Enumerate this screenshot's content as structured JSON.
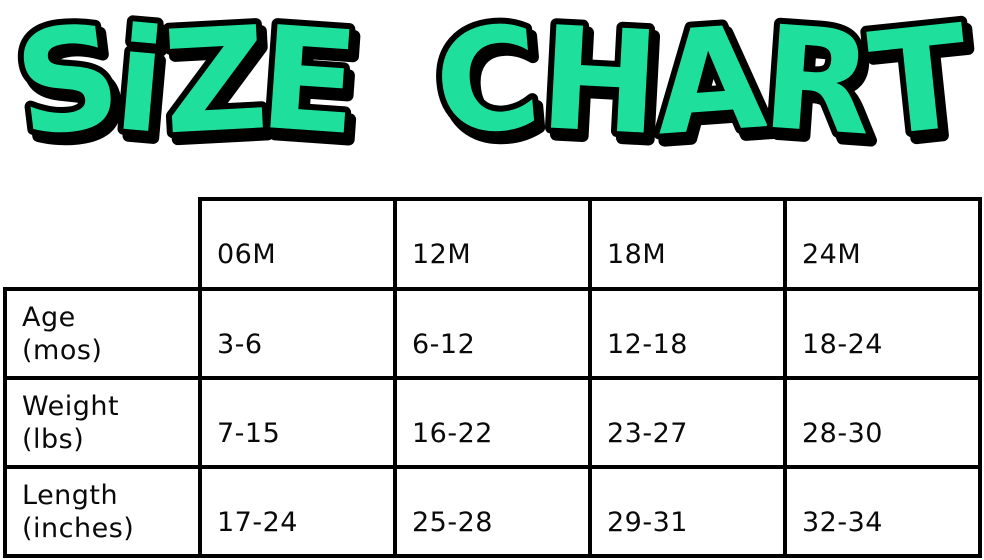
{
  "title": {
    "display_text": "SiZE CHART",
    "fill": "#1EE09C",
    "outline": "#000000",
    "shadow": "#000000"
  },
  "chart_data": {
    "type": "table",
    "title": "SIZE CHART",
    "columns": [
      "06M",
      "12M",
      "18M",
      "24M"
    ],
    "rows": [
      {
        "label": "Age",
        "unit": "(mos)",
        "values": [
          "3-6",
          "6-12",
          "12-18",
          "18-24"
        ]
      },
      {
        "label": "Weight",
        "unit": "(lbs)",
        "values": [
          "7-15",
          "16-22",
          "23-27",
          "28-30"
        ]
      },
      {
        "label": "Length",
        "unit": "(inches)",
        "values": [
          "17-24",
          "25-28",
          "29-31",
          "32-34"
        ]
      }
    ],
    "layout": {
      "grid": "5 columns x 4 rows, top-left corner cell blank/borderless",
      "border_color": "#000000",
      "background": "#ffffff"
    }
  }
}
